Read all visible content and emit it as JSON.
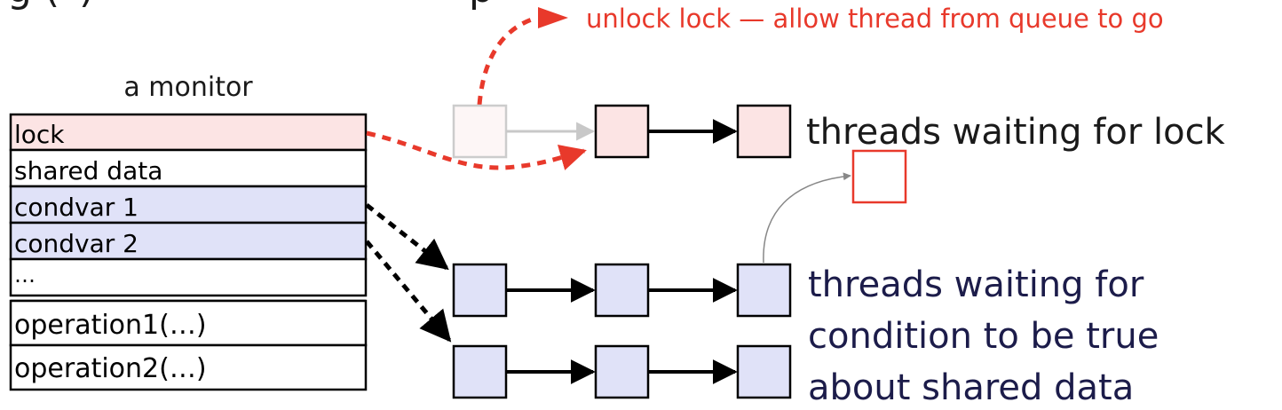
{
  "title_fragment": "g (*)",
  "top_right_fragment": "p",
  "annotation": {
    "text": "unlock lock — allow thread from queue to go",
    "color": "#e8392b"
  },
  "monitor": {
    "caption": "a monitor",
    "rows": [
      {
        "label": "lock",
        "fill": "#fce4e4"
      },
      {
        "label": "shared data",
        "fill": "#ffffff"
      },
      {
        "label": "condvar 1",
        "fill": "#e0e2f8"
      },
      {
        "label": "condvar 2",
        "fill": "#e0e2f8"
      },
      {
        "label": "…",
        "fill": "#ffffff"
      }
    ],
    "operations": [
      {
        "label": "operation1(…)"
      },
      {
        "label": "operation2(…)"
      }
    ]
  },
  "queues": {
    "lock_queue_label": "threads waiting for lock",
    "condition_queue_label": [
      "threads waiting for",
      "condition to be true",
      "about shared data"
    ]
  },
  "colors": {
    "lock_fill": "#fce4e4",
    "condvar_fill": "#e0e2f8",
    "accent_red": "#e8392b",
    "text_dark": "#1a1a1a",
    "text_navy": "#1c1c4a"
  },
  "icons": {
    "node": "square-node",
    "arrow": "arrow-head"
  }
}
